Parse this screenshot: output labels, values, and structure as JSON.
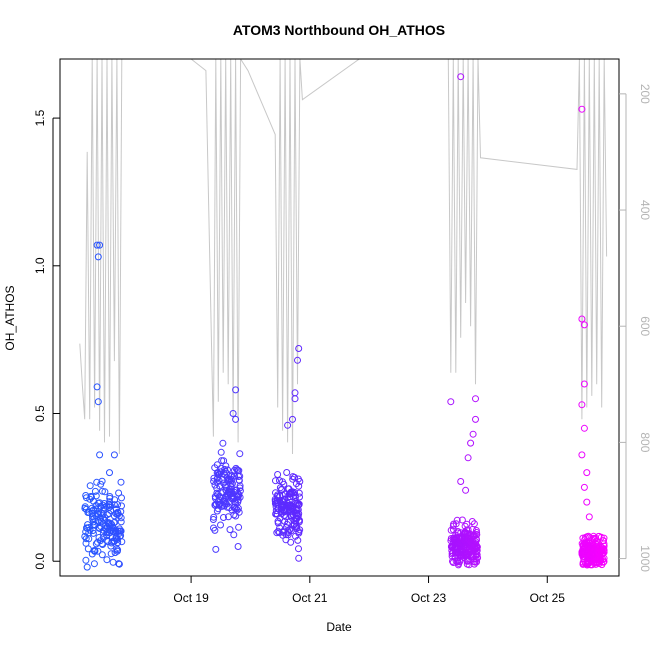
{
  "chart_data": {
    "type": "scatter",
    "title": "ATOM3 Northbound OH_ATHOS",
    "xlabel": "Date",
    "ylabel": "OH_ATHOS",
    "x_axis_type": "date",
    "xlim": [
      "2016-10-16T19:00",
      "2016-10-26T05:00"
    ],
    "ylim": [
      -0.05,
      1.7
    ],
    "x_ticks": [
      {
        "date": "2016-10-19",
        "label": "Oct 19"
      },
      {
        "date": "2016-10-21",
        "label": "Oct 21"
      },
      {
        "date": "2016-10-23",
        "label": "Oct 23"
      },
      {
        "date": "2016-10-25",
        "label": "Oct 25"
      }
    ],
    "y_ticks": [
      0.0,
      0.5,
      1.0,
      1.5
    ],
    "y_tick_labels": [
      "0.0",
      "0.5",
      "1.0",
      "1.5"
    ],
    "secondary_axis": {
      "side": "right",
      "reversed": true,
      "range": [
        1030,
        140
      ],
      "ticks": [
        200,
        400,
        600,
        800,
        1000
      ],
      "tick_labels": [
        "200",
        "400",
        "600",
        "800",
        "1000"
      ],
      "color": "#b4b4b4",
      "series_color": "#c8c8c8"
    },
    "grid": false,
    "legend": "none",
    "marker": "open-circle",
    "color_gradient": [
      "#1f5cff",
      "#6b1fff",
      "#ff00ff"
    ],
    "series": [
      {
        "flight_segments": [
          {
            "start": "2016-10-17T05:00",
            "end": "2016-10-17T20:00",
            "center": 0.13,
            "spread": 0.1,
            "n": 170,
            "outliers": [
              [
                "2016-10-17T10:00",
                1.07
              ],
              [
                "2016-10-17T11:00",
                1.07
              ],
              [
                "2016-10-17T10:30",
                1.03
              ],
              [
                "2016-10-17T10:00",
                0.59
              ],
              [
                "2016-10-17T10:30",
                0.54
              ],
              [
                "2016-10-17T11:00",
                0.36
              ],
              [
                "2016-10-17T17:00",
                0.36
              ],
              [
                "2016-10-17T15:00",
                0.3
              ],
              [
                "2016-10-17T06:00",
                -0.02
              ],
              [
                "2016-10-17T19:00",
                -0.01
              ]
            ]
          },
          {
            "start": "2016-10-19T09:00",
            "end": "2016-10-19T20:00",
            "center": 0.24,
            "spread": 0.1,
            "n": 140,
            "outliers": [
              [
                "2016-10-19T18:00",
                0.58
              ],
              [
                "2016-10-19T17:00",
                0.5
              ],
              [
                "2016-10-19T18:00",
                0.48
              ],
              [
                "2016-10-19T10:00",
                0.04
              ],
              [
                "2016-10-19T19:00",
                0.05
              ]
            ]
          },
          {
            "start": "2016-10-20T10:00",
            "end": "2016-10-20T20:00",
            "center": 0.18,
            "spread": 0.09,
            "n": 160,
            "outliers": [
              [
                "2016-10-20T19:30",
                0.72
              ],
              [
                "2016-10-20T19:00",
                0.68
              ],
              [
                "2016-10-20T18:00",
                0.57
              ],
              [
                "2016-10-20T18:00",
                0.55
              ],
              [
                "2016-10-20T17:00",
                0.48
              ],
              [
                "2016-10-20T15:00",
                0.46
              ],
              [
                "2016-10-20T19:30",
                0.01
              ]
            ]
          },
          {
            "start": "2016-10-23T09:00",
            "end": "2016-10-23T20:00",
            "center": 0.05,
            "spread": 0.06,
            "n": 200,
            "outliers": [
              [
                "2016-10-23T13:00",
                1.64
              ],
              [
                "2016-10-23T09:00",
                0.54
              ],
              [
                "2016-10-23T19:00",
                0.55
              ],
              [
                "2016-10-23T19:00",
                0.48
              ],
              [
                "2016-10-23T18:00",
                0.43
              ],
              [
                "2016-10-23T17:00",
                0.4
              ],
              [
                "2016-10-23T16:00",
                0.35
              ],
              [
                "2016-10-23T13:00",
                0.27
              ],
              [
                "2016-10-23T15:00",
                0.24
              ]
            ]
          },
          {
            "start": "2016-10-25T14:00",
            "end": "2016-10-25T23:00",
            "center": 0.03,
            "spread": 0.04,
            "n": 180,
            "outliers": [
              [
                "2016-10-25T14:00",
                1.53
              ],
              [
                "2016-10-25T14:00",
                0.82
              ],
              [
                "2016-10-25T15:00",
                0.8
              ],
              [
                "2016-10-25T15:00",
                0.6
              ],
              [
                "2016-10-25T14:00",
                0.53
              ],
              [
                "2016-10-25T15:00",
                0.45
              ],
              [
                "2016-10-25T14:00",
                0.36
              ],
              [
                "2016-10-25T16:00",
                0.3
              ],
              [
                "2016-10-25T15:00",
                0.25
              ],
              [
                "2016-10-25T16:00",
                0.2
              ],
              [
                "2016-10-25T17:00",
                0.15
              ],
              [
                "2016-10-25T17:00",
                0.08
              ]
            ]
          }
        ]
      }
    ],
    "pressure_trace": [
      [
        "2016-10-17T03:00",
        630
      ],
      [
        "2016-10-17T04:00",
        700
      ],
      [
        "2016-10-17T05:00",
        760
      ],
      [
        "2016-10-17T06:00",
        300
      ],
      [
        "2016-10-17T07:00",
        760
      ],
      [
        "2016-10-17T08:00",
        140
      ],
      [
        "2016-10-17T09:00",
        740
      ],
      [
        "2016-10-17T10:00",
        140
      ],
      [
        "2016-10-17T11:00",
        780
      ],
      [
        "2016-10-17T12:00",
        140
      ],
      [
        "2016-10-17T13:00",
        800
      ],
      [
        "2016-10-17T14:00",
        140
      ],
      [
        "2016-10-17T15:00",
        790
      ],
      [
        "2016-10-17T16:00",
        140
      ],
      [
        "2016-10-17T17:00",
        660
      ],
      [
        "2016-10-17T18:00",
        140
      ],
      [
        "2016-10-17T19:00",
        820
      ],
      [
        "2016-10-17T20:00",
        140
      ],
      [
        "2016-10-19T00:00",
        140
      ],
      [
        "2016-10-19T06:00",
        160
      ],
      [
        "2016-10-19T09:00",
        790
      ],
      [
        "2016-10-19T10:00",
        140
      ],
      [
        "2016-10-19T11:00",
        730
      ],
      [
        "2016-10-19T12:00",
        140
      ],
      [
        "2016-10-19T13:00",
        680
      ],
      [
        "2016-10-19T14:00",
        140
      ],
      [
        "2016-10-19T15:00",
        700
      ],
      [
        "2016-10-19T16:00",
        140
      ],
      [
        "2016-10-19T17:00",
        760
      ],
      [
        "2016-10-19T18:00",
        140
      ],
      [
        "2016-10-19T19:00",
        800
      ],
      [
        "2016-10-19T20:00",
        140
      ],
      [
        "2016-10-19T23:00",
        160
      ],
      [
        "2016-10-20T07:00",
        240
      ],
      [
        "2016-10-20T10:00",
        270
      ],
      [
        "2016-10-20T11:00",
        740
      ],
      [
        "2016-10-20T12:00",
        140
      ],
      [
        "2016-10-20T13:00",
        780
      ],
      [
        "2016-10-20T14:00",
        140
      ],
      [
        "2016-10-20T15:00",
        800
      ],
      [
        "2016-10-20T16:00",
        140
      ],
      [
        "2016-10-20T17:00",
        820
      ],
      [
        "2016-10-20T18:00",
        140
      ],
      [
        "2016-10-20T19:00",
        700
      ],
      [
        "2016-10-20T20:00",
        140
      ],
      [
        "2016-10-20T21:00",
        210
      ],
      [
        "2016-10-21T20:00",
        140
      ],
      [
        "2016-10-23T08:00",
        140
      ],
      [
        "2016-10-23T09:00",
        680
      ],
      [
        "2016-10-23T10:00",
        140
      ],
      [
        "2016-10-23T11:00",
        680
      ],
      [
        "2016-10-23T12:00",
        140
      ],
      [
        "2016-10-23T13:00",
        620
      ],
      [
        "2016-10-23T14:00",
        140
      ],
      [
        "2016-10-23T15:00",
        560
      ],
      [
        "2016-10-23T16:00",
        140
      ],
      [
        "2016-10-23T17:00",
        600
      ],
      [
        "2016-10-23T18:00",
        140
      ],
      [
        "2016-10-23T19:00",
        700
      ],
      [
        "2016-10-23T20:00",
        140
      ],
      [
        "2016-10-23T21:00",
        310
      ],
      [
        "2016-10-25T12:00",
        330
      ],
      [
        "2016-10-25T13:00",
        140
      ],
      [
        "2016-10-25T14:00",
        760
      ],
      [
        "2016-10-25T15:00",
        140
      ],
      [
        "2016-10-25T16:00",
        740
      ],
      [
        "2016-10-25T17:00",
        140
      ],
      [
        "2016-10-25T18:00",
        720
      ],
      [
        "2016-10-25T19:00",
        140
      ],
      [
        "2016-10-25T20:00",
        700
      ],
      [
        "2016-10-25T21:00",
        140
      ],
      [
        "2016-10-25T22:00",
        740
      ],
      [
        "2016-10-25T23:00",
        140
      ],
      [
        "2016-10-26T00:00",
        480
      ]
    ]
  }
}
